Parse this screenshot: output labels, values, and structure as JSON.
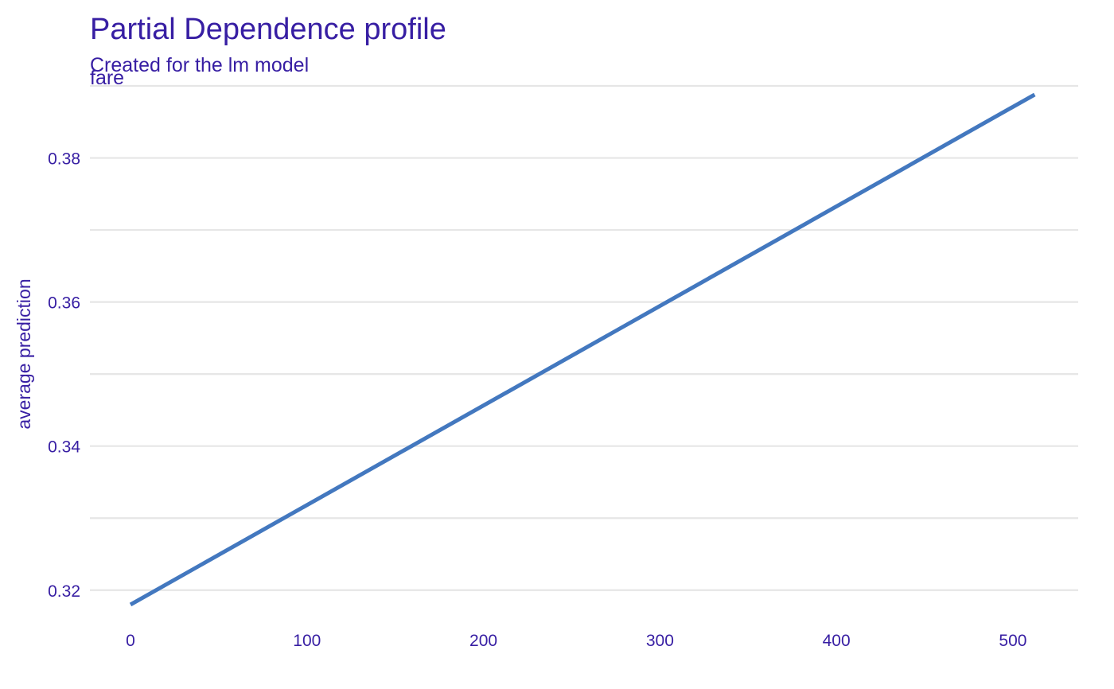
{
  "chart_data": {
    "type": "line",
    "title": "Partial Dependence profile",
    "subtitle": "Created for the lm model",
    "panel_label": "fare",
    "xlabel": "",
    "ylabel": "average prediction",
    "xlim": [
      -23,
      537
    ],
    "ylim": [
      0.316,
      0.39
    ],
    "x_ticks": [
      0,
      100,
      200,
      300,
      400,
      500
    ],
    "y_ticks": [
      0.32,
      0.34,
      0.36,
      0.38
    ],
    "grid": true,
    "legend": "none",
    "series": [
      {
        "x": [
          0,
          512.33
        ],
        "values": [
          0.318,
          0.3888
        ]
      }
    ]
  },
  "colors": {
    "text": "#371ea3",
    "line": "#4378bf",
    "grid": "#e6e6e6",
    "background": "#ffffff"
  }
}
